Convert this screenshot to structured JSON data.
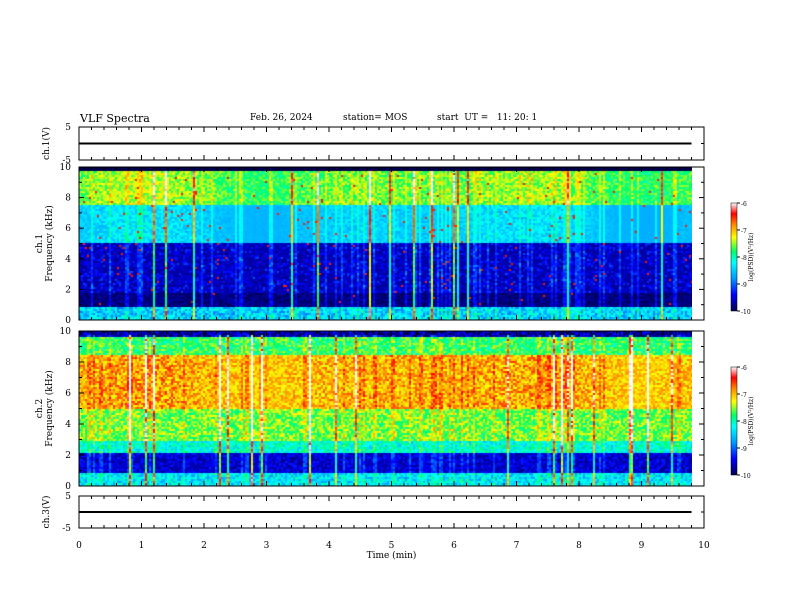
{
  "header": {
    "title": "VLF Spectra",
    "date": "Feb. 26, 2024",
    "station": "station= MOS",
    "start_ut": "start  UT =   11: 20: 1"
  },
  "colors": {
    "scale": [
      "#00005a",
      "#0000ff",
      "#0099ff",
      "#00ffff",
      "#00ff66",
      "#ffff00",
      "#ff8800",
      "#ff0000",
      "#ffffff"
    ]
  },
  "chart_data": [
    {
      "type": "line",
      "panel": "ch1-voltage",
      "ylabel": "ch.1(V)",
      "ylim": [
        -5,
        5
      ],
      "yticks": [
        "5",
        "-5"
      ],
      "series": [
        {
          "x": [
            0,
            9.8
          ],
          "y": [
            0,
            0
          ]
        }
      ]
    },
    {
      "type": "heatmap",
      "panel": "ch1-spectrogram",
      "ylabel": "ch.1\nFrequency (kHz)",
      "ylim": [
        0,
        10
      ],
      "yticks": [
        "0",
        "2",
        "4",
        "6",
        "8",
        "10"
      ],
      "x_range": [
        0,
        9.8
      ],
      "colorbar": {
        "label": "log(PSD)(V²/Hz)",
        "range": [
          -10,
          -6
        ],
        "ticks": [
          "-6",
          "-7",
          "-8",
          "-9",
          "-10"
        ]
      }
    },
    {
      "type": "heatmap",
      "panel": "ch2-spectrogram",
      "ylabel": "ch.2\nFrequency (kHz)",
      "ylim": [
        0,
        10
      ],
      "yticks": [
        "0",
        "2",
        "4",
        "6",
        "8",
        "10"
      ],
      "x_range": [
        0,
        9.8
      ],
      "colorbar": {
        "label": "log(PSD)(V²/Hz)",
        "range": [
          -10,
          -6
        ],
        "ticks": [
          "-6",
          "-7",
          "-8",
          "-9",
          "-10"
        ]
      }
    },
    {
      "type": "line",
      "panel": "ch3-voltage",
      "ylabel": "ch.3(V)",
      "ylim": [
        -5,
        5
      ],
      "yticks": [
        "5",
        "-5"
      ],
      "series": [
        {
          "x": [
            0,
            9.8
          ],
          "y": [
            0,
            0
          ]
        }
      ]
    }
  ],
  "xaxis": {
    "label": "Time (min)",
    "range": [
      0,
      10
    ],
    "ticks": [
      "0",
      "1",
      "2",
      "3",
      "4",
      "5",
      "6",
      "7",
      "8",
      "9",
      "10"
    ]
  }
}
